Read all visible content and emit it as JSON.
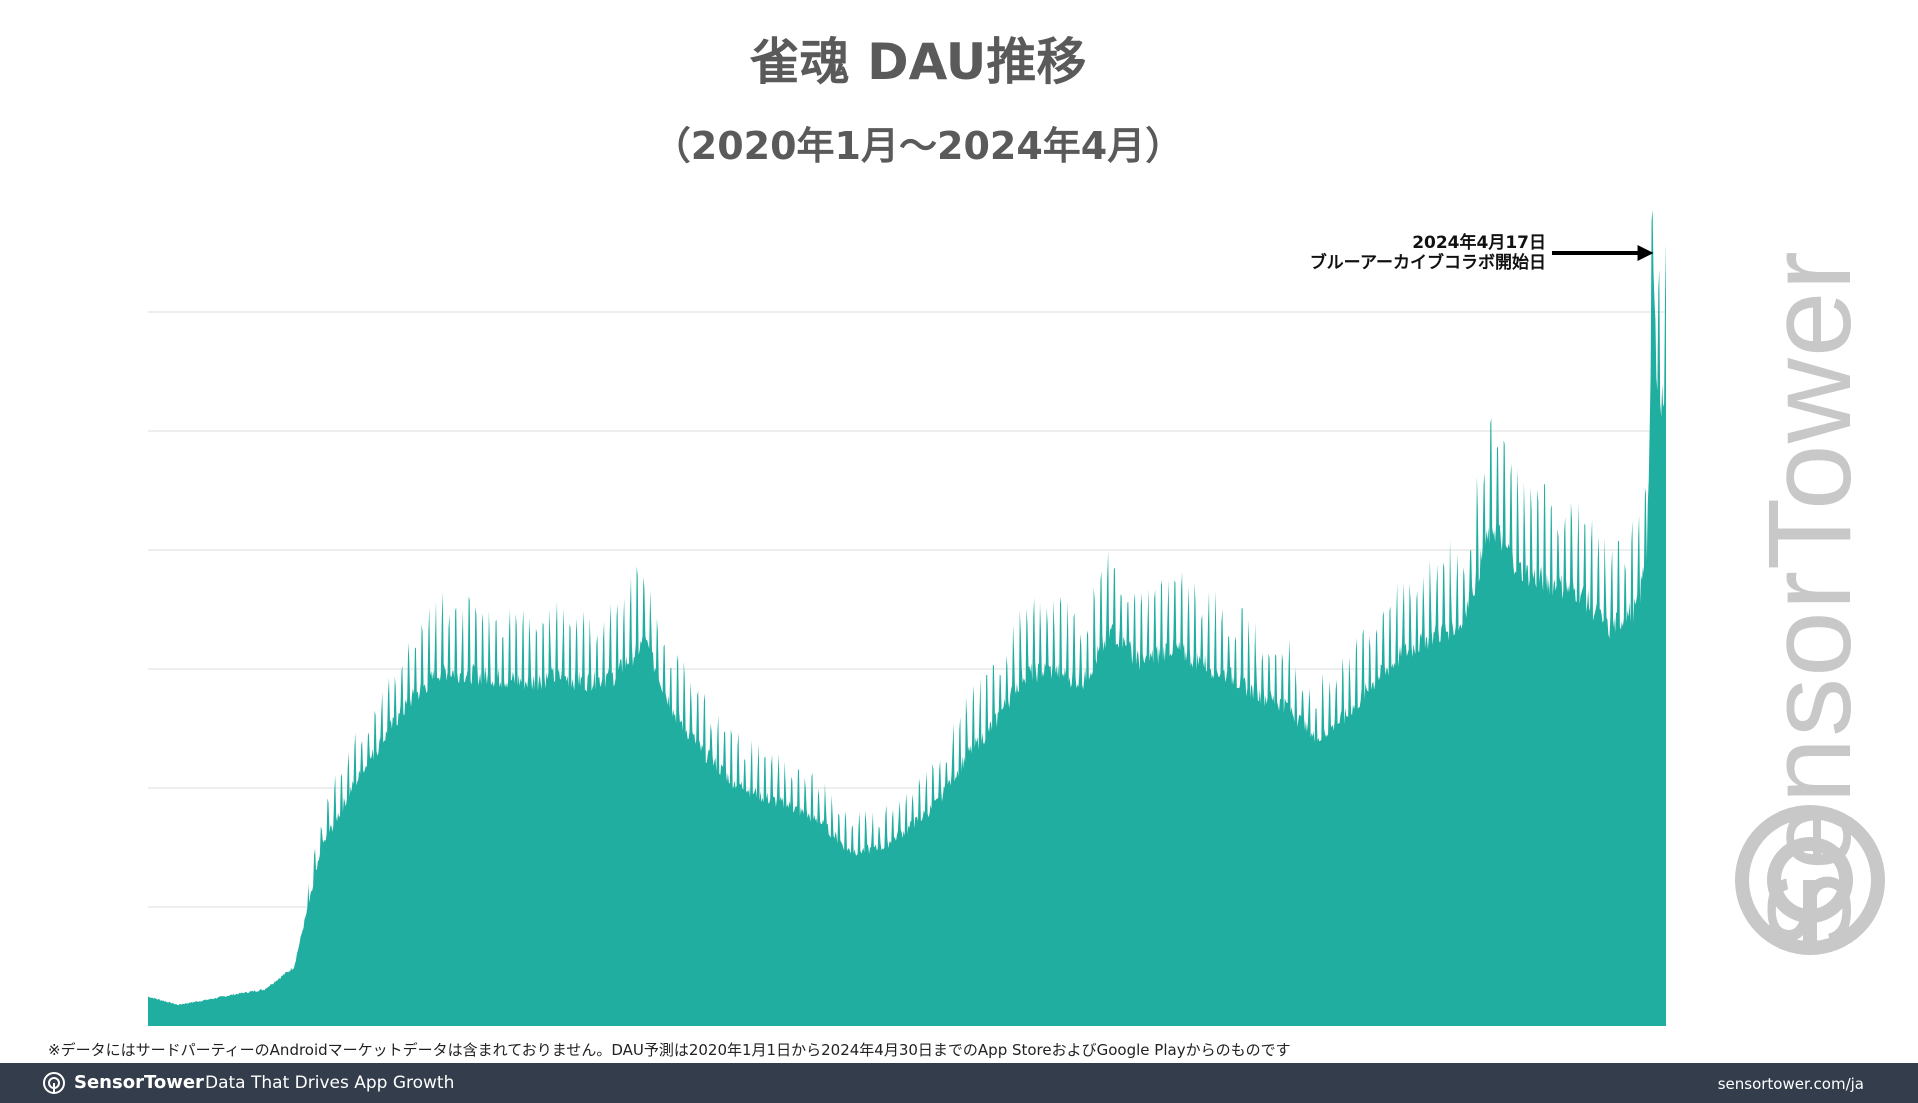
{
  "colors": {
    "area": "#1fae9f",
    "grid": "#dcdcdc",
    "footer_bg": "#343d4b"
  },
  "chart_data": {
    "type": "area",
    "title": "雀魂 DAU推移",
    "subtitle": "（2020年1月～2024年4月）",
    "x_range": [
      "2020-01-01",
      "2024-04-30"
    ],
    "y_axis": {
      "tick_labels_shown": false,
      "relative_scale": [
        0,
        6
      ],
      "gridlines": 6
    },
    "grid": true,
    "legend": "none",
    "series": [
      {
        "x": [
          "2020-01",
          "2020-02",
          "2020-03",
          "2020-04",
          "2020-05",
          "2020-06",
          "2020-07",
          "2020-08",
          "2020-09",
          "2020-10",
          "2020-11",
          "2020-12",
          "2021-01",
          "2021-02",
          "2021-03",
          "2021-04",
          "2021-05",
          "2021-06",
          "2021-07",
          "2021-08",
          "2021-09",
          "2021-10",
          "2021-11",
          "2021-12",
          "2022-01",
          "2022-02",
          "2022-03",
          "2022-04",
          "2022-05",
          "2022-06",
          "2022-07",
          "2022-08",
          "2022-09",
          "2022-10",
          "2022-11",
          "2022-12",
          "2023-01",
          "2023-02",
          "2023-03",
          "2023-04",
          "2023-05",
          "2023-06",
          "2023-07",
          "2023-08",
          "2023-09",
          "2023-10",
          "2023-11",
          "2023-12",
          "2024-01",
          "2024-02",
          "2024-03",
          "2024-04-01",
          "2024-04-10",
          "2024-04-17",
          "2024-04-20",
          "2024-04-25",
          "2024-04-30"
        ],
        "values": [
          0.25,
          0.18,
          0.22,
          0.27,
          0.31,
          0.5,
          1.55,
          2.05,
          2.45,
          2.8,
          3.05,
          3.02,
          2.98,
          2.95,
          3.0,
          2.95,
          3.0,
          3.3,
          2.7,
          2.35,
          2.1,
          1.97,
          1.88,
          1.75,
          1.5,
          1.52,
          1.68,
          1.9,
          2.3,
          2.6,
          3.02,
          3.05,
          2.95,
          3.4,
          3.1,
          3.25,
          3.12,
          3.0,
          2.85,
          2.75,
          2.45,
          2.65,
          2.95,
          3.2,
          3.35,
          3.45,
          4.3,
          3.9,
          3.8,
          3.72,
          3.4,
          3.6,
          4.1,
          6.4,
          5.7,
          5.3,
          5.6
        ]
      }
    ],
    "annotation": {
      "x": "2024-04-17",
      "lines": [
        "2024年4月17日",
        "ブルーアーカイブコラボ開始日"
      ]
    }
  },
  "footnote": "※データにはサードパーティーのAndroidマーケットデータは含まれておりません。DAU予測は2020年1月1日から2024年4月30日までのApp StoreおよびGoogle Playからのものです",
  "watermark": {
    "text": "SensorTower"
  },
  "footer": {
    "brand": "SensorTower",
    "tagline": "Data That Drives App Growth",
    "url": "sensortower.com/ja"
  }
}
